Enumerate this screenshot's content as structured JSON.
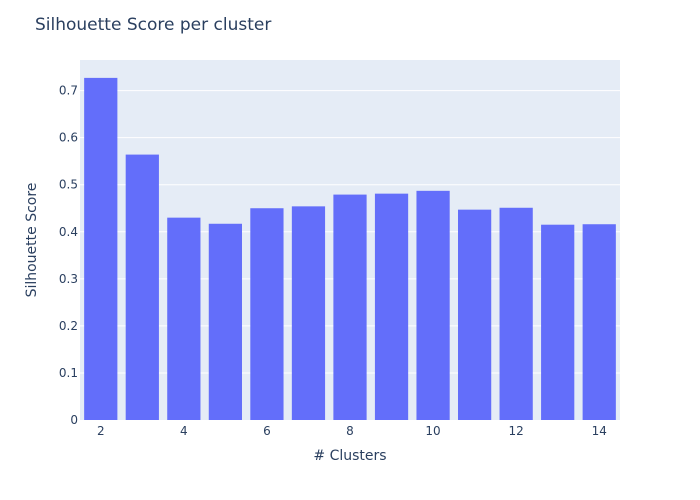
{
  "chart_data": {
    "type": "bar",
    "title": "Silhouette Score per cluster",
    "xlabel": "# Clusters",
    "ylabel": "Silhouette Score",
    "categories": [
      2,
      3,
      4,
      5,
      6,
      7,
      8,
      9,
      10,
      11,
      12,
      13,
      14
    ],
    "values": [
      0.727,
      0.564,
      0.43,
      0.417,
      0.45,
      0.454,
      0.479,
      0.481,
      0.487,
      0.447,
      0.451,
      0.415,
      0.416
    ],
    "xticks": [
      2,
      4,
      6,
      8,
      10,
      12,
      14
    ],
    "yticks": [
      0,
      0.1,
      0.2,
      0.3,
      0.4,
      0.5,
      0.6,
      0.7
    ],
    "xlim": [
      1.5,
      14.5
    ],
    "ylim": [
      0,
      0.765
    ],
    "grid": true,
    "colors": {
      "bar": "#636efa",
      "plot_bg": "#e5ecf6",
      "grid": "#ffffff",
      "text": "#2a3f5f"
    }
  }
}
